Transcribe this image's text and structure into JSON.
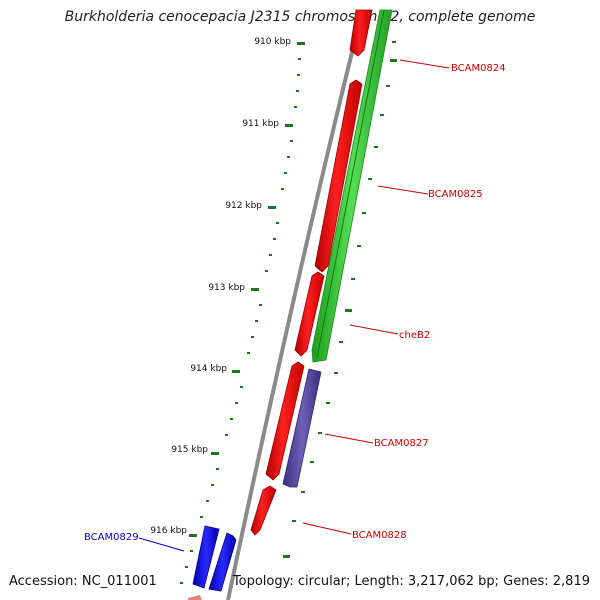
{
  "title": "Burkholderia cenocepacia J2315 chromosome 2, complete genome",
  "footer": {
    "accession_label": "Accession:",
    "accession": "NC_011001",
    "topology_text": "Topology: circular; Length: 3,217,062 bp; Genes: 2,819"
  },
  "ruler": {
    "unit": "kbp",
    "ticks": [
      "910 kbp",
      "911 kbp",
      "912 kbp",
      "913 kbp",
      "914 kbp",
      "915 kbp",
      "916 kbp"
    ]
  },
  "genes": [
    {
      "name": "BCAM0824",
      "color": "#cc0000"
    },
    {
      "name": "BCAM0825",
      "color": "#cc0000"
    },
    {
      "name": "cheB2",
      "color": "#cc0000"
    },
    {
      "name": "BCAM0827",
      "color": "#cc0000"
    },
    {
      "name": "BCAM0828",
      "color": "#cc0000"
    },
    {
      "name": "BCAM0829",
      "color": "#0000cc"
    }
  ],
  "colors": {
    "forward_gene": "#ff0000",
    "reverse_gene": "#33cc33",
    "other_gene": "#5a4aa0",
    "blue_gene": "#0000ee",
    "backbone": "#888888",
    "tick": "#1a7a1a"
  }
}
